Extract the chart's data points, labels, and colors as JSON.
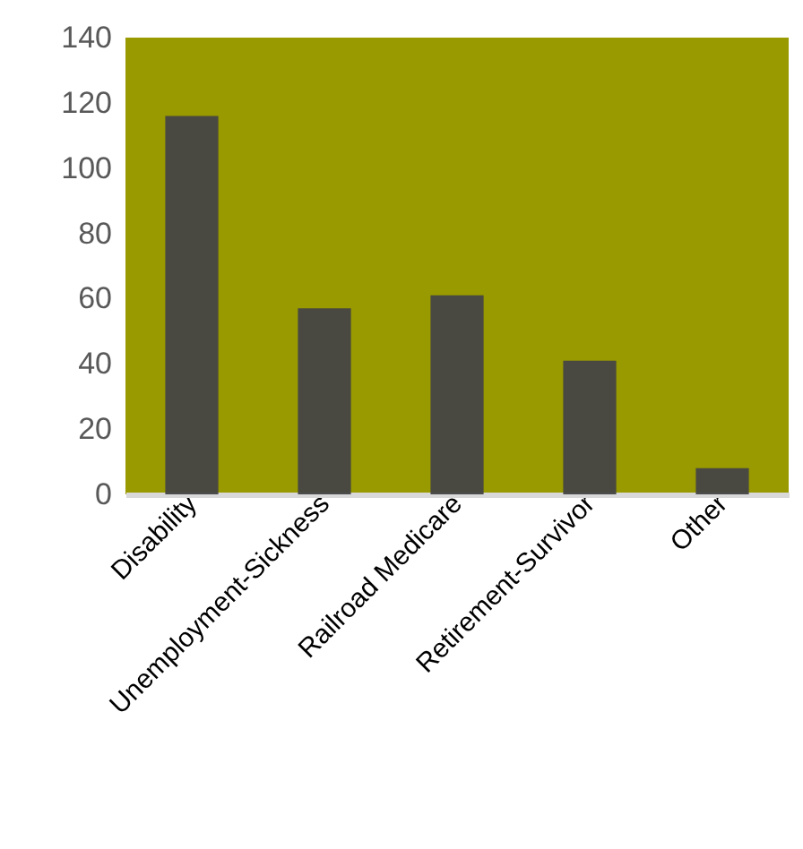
{
  "chart_data": {
    "type": "bar",
    "categories": [
      "Disability",
      "Unemployment-Sickness",
      "Railroad Medicare",
      "Retirement-Survivor",
      "Other"
    ],
    "values": [
      116,
      57,
      61,
      41,
      8
    ],
    "color": "#444444",
    "ylim": [
      0,
      140
    ],
    "yticks": [
      0,
      20,
      40,
      60,
      80,
      100,
      120,
      140
    ],
    "grid": false
  }
}
